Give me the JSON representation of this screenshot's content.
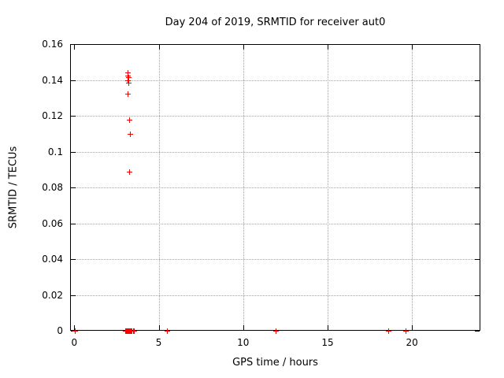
{
  "chart_data": {
    "type": "scatter",
    "title": "Day 204 of 2019, SRMTID for receiver aut0",
    "xlabel": "GPS time / hours",
    "ylabel": "SRMTID / TECUs",
    "xlim": [
      -0.25,
      24.05
    ],
    "ylim": [
      0,
      0.16
    ],
    "grid": true,
    "legend": "none",
    "background": "#ffffff",
    "axis_color": "#000000",
    "grid_color": "#a0a0a0",
    "marker": "plus",
    "marker_color": "#ff0000",
    "x_ticks": [
      {
        "value": 0,
        "label": "0",
        "grid": false
      },
      {
        "value": 5,
        "label": "5",
        "grid": true
      },
      {
        "value": 10,
        "label": "10",
        "grid": true
      },
      {
        "value": 15,
        "label": "15",
        "grid": true
      },
      {
        "value": 20,
        "label": "20",
        "grid": true
      }
    ],
    "y_ticks": [
      {
        "value": 0,
        "label": "0",
        "grid": false
      },
      {
        "value": 0.02,
        "label": "0.02",
        "grid": true
      },
      {
        "value": 0.04,
        "label": "0.04",
        "grid": true
      },
      {
        "value": 0.06,
        "label": "0.06",
        "grid": true
      },
      {
        "value": 0.08,
        "label": "0.08",
        "grid": true
      },
      {
        "value": 0.1,
        "label": "0.1",
        "grid": true
      },
      {
        "value": 0.12,
        "label": "0.12",
        "grid": true
      },
      {
        "value": 0.14,
        "label": "0.14",
        "grid": true
      },
      {
        "value": 0.16,
        "label": "0.16",
        "grid": false
      }
    ],
    "series": [
      {
        "name": "SRMTID",
        "points": [
          [
            3.17,
            0.144
          ],
          [
            3.17,
            0.1425
          ],
          [
            3.18,
            0.1415
          ],
          [
            3.17,
            0.14
          ],
          [
            3.18,
            0.1385
          ],
          [
            3.17,
            0.1325
          ],
          [
            3.24,
            0.118
          ],
          [
            3.29,
            0.11
          ],
          [
            3.24,
            0.089
          ],
          [
            0.05,
            0
          ],
          [
            3.0,
            0
          ],
          [
            3.04,
            0
          ],
          [
            3.08,
            0
          ],
          [
            3.12,
            0
          ],
          [
            3.16,
            0
          ],
          [
            3.2,
            0
          ],
          [
            3.26,
            0
          ],
          [
            3.31,
            0
          ],
          [
            3.36,
            0
          ],
          [
            3.41,
            0
          ],
          [
            3.46,
            0
          ],
          [
            3.51,
            0
          ],
          [
            5.5,
            0
          ],
          [
            11.9,
            0
          ],
          [
            18.6,
            0
          ],
          [
            19.6,
            0
          ]
        ]
      }
    ]
  }
}
